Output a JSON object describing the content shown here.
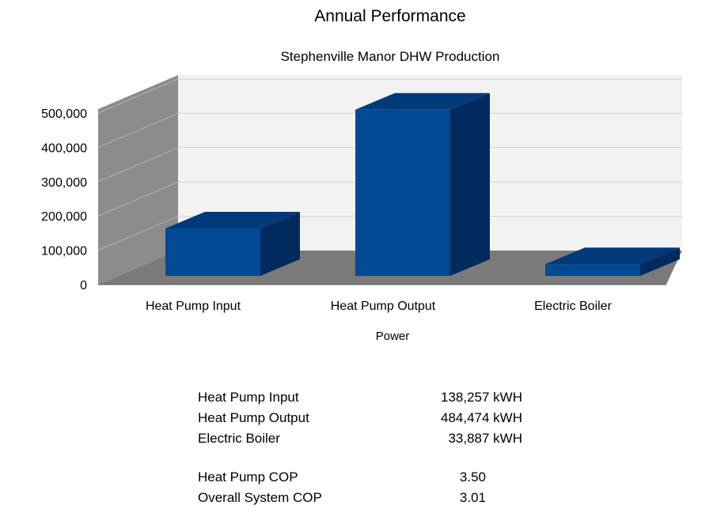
{
  "chart_data": {
    "type": "bar",
    "title": "Annual Performance",
    "subtitle": "Stephenville Manor DHW Production",
    "xlabel": "Power",
    "ylabel": "",
    "categories": [
      "Heat Pump Input",
      "Heat Pump Output",
      "Electric Boiler"
    ],
    "values": [
      138257,
      484474,
      33887
    ],
    "ylim": [
      0,
      500000
    ],
    "yticks": [
      "0",
      "100,000",
      "200,000",
      "300,000",
      "400,000",
      "500,000"
    ],
    "grid": true,
    "three_d": true,
    "bar_color": "#004A93",
    "bar_top_color": "#003A7A",
    "bar_side_color": "#002B5C"
  },
  "summary": {
    "energy": [
      {
        "label": "Heat Pump Input",
        "value": "138,257 kWH"
      },
      {
        "label": "Heat Pump Output",
        "value": "484,474 kWH"
      },
      {
        "label": "Electric Boiler",
        "value": "33,887 kWH"
      }
    ],
    "cop": [
      {
        "label": "Heat Pump COP",
        "value": "3.50"
      },
      {
        "label": "Overall System COP",
        "value": "3.01"
      }
    ]
  }
}
